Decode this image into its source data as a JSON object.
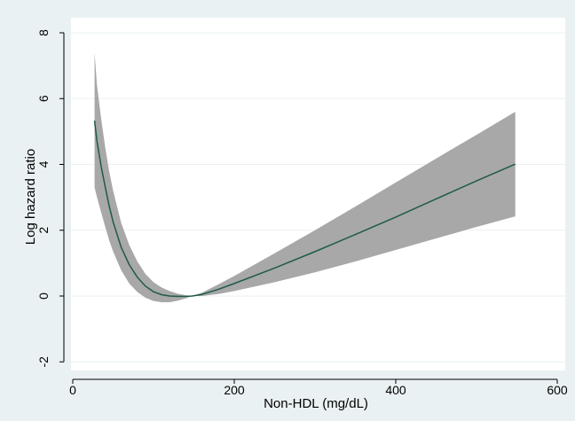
{
  "chart_data": {
    "type": "line",
    "title": "",
    "xlabel": "Non-HDL (mg/dL)",
    "ylabel": "Log hazard ratio",
    "xlim": [
      0,
      600
    ],
    "ylim": [
      -2,
      8
    ],
    "x_ticks": [
      0,
      200,
      400,
      600
    ],
    "y_ticks": [
      -2,
      0,
      2,
      4,
      6,
      8
    ],
    "x_tick_labels": [
      "0",
      "200",
      "400",
      "600"
    ],
    "y_tick_labels": [
      "-2",
      "0",
      "2",
      "4",
      "6",
      "8"
    ],
    "grid": "horizontal",
    "legend": "none",
    "colors": {
      "background": "#eaf1f3",
      "plot_area": "#ffffff",
      "gridline": "#eaf1f3",
      "band": "#a8a8a8",
      "line": "#1f5a4c",
      "axis": "#000000"
    },
    "series": [
      {
        "x": [
          27,
          30,
          35,
          40,
          45,
          50,
          60,
          70,
          80,
          90,
          100,
          110,
          120,
          130,
          140,
          148,
          160,
          180,
          200,
          250,
          300,
          350,
          400,
          450,
          500,
          548
        ],
        "y": [
          5.33,
          4.7,
          3.96,
          3.34,
          2.75,
          2.25,
          1.48,
          0.95,
          0.57,
          0.3,
          0.13,
          0.04,
          0.0,
          -0.01,
          -0.01,
          0.0,
          0.05,
          0.2,
          0.38,
          0.85,
          1.35,
          1.87,
          2.4,
          2.95,
          3.5,
          4.01
        ],
        "lower": [
          3.3,
          3.0,
          2.56,
          2.12,
          1.7,
          1.35,
          0.78,
          0.38,
          0.12,
          -0.05,
          -0.15,
          -0.19,
          -0.19,
          -0.14,
          -0.07,
          0.0,
          0.0,
          0.06,
          0.15,
          0.42,
          0.72,
          1.05,
          1.4,
          1.75,
          2.1,
          2.42
        ],
        "upper": [
          7.4,
          6.4,
          5.42,
          4.55,
          3.8,
          3.2,
          2.22,
          1.55,
          1.05,
          0.67,
          0.42,
          0.26,
          0.15,
          0.07,
          0.02,
          0.0,
          0.1,
          0.35,
          0.61,
          1.3,
          2.0,
          2.72,
          3.45,
          4.18,
          4.9,
          5.6
        ]
      }
    ]
  }
}
